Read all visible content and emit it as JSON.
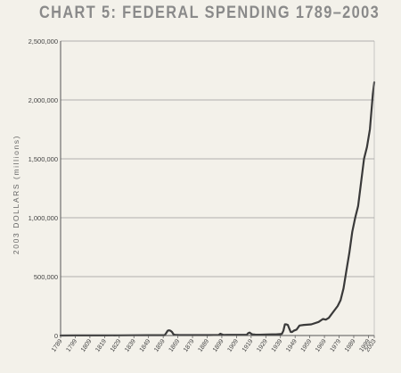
{
  "title": "CHART 5:   FEDERAL SPENDING 1789–2003",
  "chart_data": {
    "type": "line",
    "title": "CHART 5:   FEDERAL SPENDING 1789–2003",
    "xlabel": "",
    "ylabel": "2003 DOLLARS (millions)",
    "xlim": [
      1789,
      2003
    ],
    "ylim": [
      0,
      2500000
    ],
    "yticks": [
      0,
      500000,
      1000000,
      1500000,
      2000000,
      2500000
    ],
    "ytick_labels": [
      "0",
      "500,000",
      "1,000,000",
      "1,500,000",
      "2,000,000",
      "2,500,000"
    ],
    "xtick_labels": [
      "1789",
      "1799",
      "1809",
      "1819",
      "1829",
      "1839",
      "1849",
      "1859",
      "1869",
      "1879",
      "1889",
      "1899",
      "1909",
      "1919",
      "1929",
      "1939",
      "1949",
      "1959",
      "1969",
      "1979",
      "1989",
      "1999",
      "2003"
    ],
    "grid": true,
    "series": [
      {
        "color": "#3a3a3a",
        "x": [
          1789,
          1799,
          1809,
          1819,
          1829,
          1839,
          1849,
          1860,
          1861,
          1862,
          1863,
          1864,
          1865,
          1866,
          1867,
          1870,
          1880,
          1890,
          1897,
          1898,
          1899,
          1900,
          1910,
          1916,
          1917,
          1918,
          1919,
          1920,
          1921,
          1922,
          1925,
          1930,
          1933,
          1936,
          1939,
          1940,
          1941,
          1942,
          1943,
          1944,
          1945,
          1946,
          1947,
          1948,
          1950,
          1952,
          1955,
          1960,
          1965,
          1968,
          1970,
          1972,
          1975,
          1978,
          1980,
          1982,
          1984,
          1986,
          1988,
          1990,
          1992,
          1994,
          1996,
          1998,
          2000,
          2002,
          2003
        ],
        "y": [
          300,
          500,
          700,
          1000,
          1200,
          2000,
          3000,
          3000,
          20000,
          40000,
          45000,
          40000,
          30000,
          10000,
          6000,
          4000,
          3500,
          4000,
          5000,
          15000,
          10000,
          5000,
          6000,
          6000,
          20000,
          25000,
          15000,
          8000,
          8000,
          7000,
          7000,
          8000,
          10000,
          10000,
          12000,
          15000,
          40000,
          95000,
          95000,
          90000,
          60000,
          30000,
          30000,
          40000,
          50000,
          85000,
          90000,
          95000,
          115000,
          140000,
          135000,
          150000,
          200000,
          250000,
          300000,
          400000,
          550000,
          700000,
          880000,
          1000000,
          1100000,
          1300000,
          1500000,
          1600000,
          1750000,
          2050000,
          2150000
        ]
      }
    ]
  }
}
